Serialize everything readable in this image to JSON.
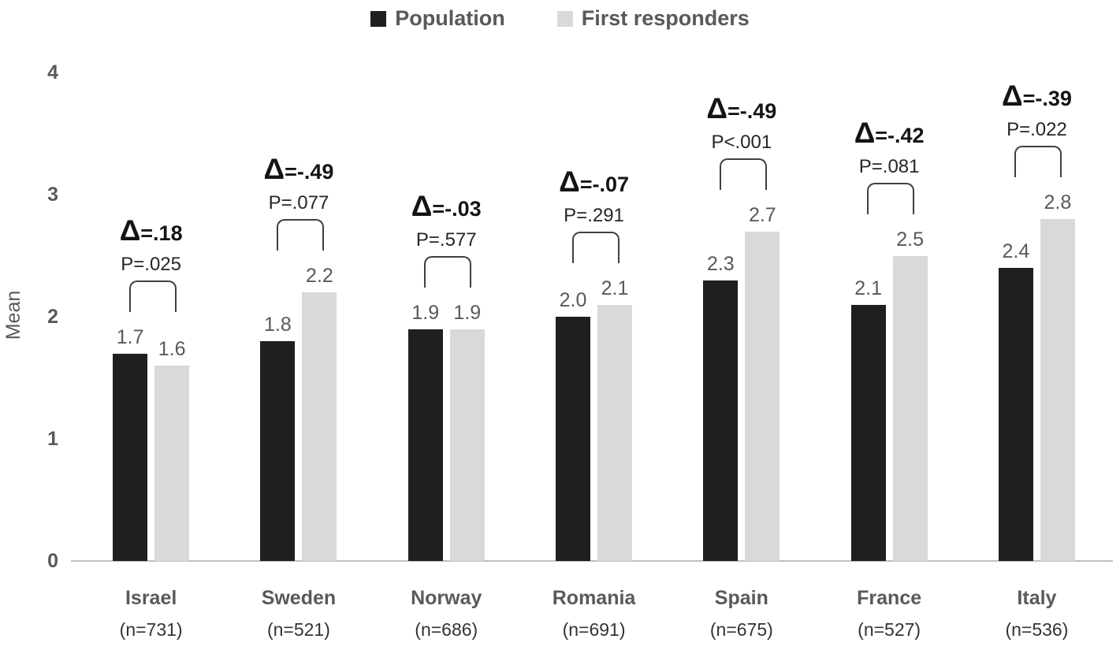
{
  "chart_data": {
    "type": "bar",
    "title": "",
    "xlabel": "",
    "ylabel": "Mean",
    "ylim": [
      0,
      4
    ],
    "yticks": [
      0,
      1,
      2,
      3,
      4
    ],
    "grid": false,
    "legend_position": "top-center",
    "legend": [
      "Population",
      "First responders"
    ],
    "categories": [
      "Israel",
      "Sweden",
      "Norway",
      "Romania",
      "Spain",
      "France",
      "Italy"
    ],
    "sample_labels": [
      "(n=731)",
      "(n=521)",
      "(n=686)",
      "(n=691)",
      "(n=675)",
      "(n=527)",
      "(n=536)"
    ],
    "series": [
      {
        "name": "Population",
        "color": "#1f1f1f",
        "values": [
          1.7,
          1.8,
          1.9,
          2.0,
          2.3,
          2.1,
          2.4
        ],
        "labels": [
          "1.7",
          "1.8",
          "1.9",
          "2.0",
          "2.3",
          "2.1",
          "2.4"
        ]
      },
      {
        "name": "First responders",
        "color": "#d9d9d9",
        "values": [
          1.6,
          2.2,
          1.9,
          2.1,
          2.7,
          2.5,
          2.8
        ],
        "labels": [
          "1.6",
          "2.2",
          "1.9",
          "2.1",
          "2.7",
          "2.5",
          "2.8"
        ]
      }
    ],
    "annotations": [
      {
        "delta": "Δ=.18",
        "p": "P=.025"
      },
      {
        "delta": "Δ=-.49",
        "p": "P=.077"
      },
      {
        "delta": "Δ=-.03",
        "p": "P=.577"
      },
      {
        "delta": "Δ=-.07",
        "p": "P=.291"
      },
      {
        "delta": "Δ=-.49",
        "p": "P<.001"
      },
      {
        "delta": "Δ=-.42",
        "p": "P=.081"
      },
      {
        "delta": "Δ=-.39",
        "p": "P=.022"
      }
    ],
    "colors": {
      "population_bar": "#1f1f1f",
      "first_responders_bar": "#d9d9d9",
      "axis_text": "#595959",
      "annotation_text": "#262626",
      "delta_text": "#141414",
      "axis_line": "#bfbfbf",
      "bracket": "#404040",
      "background": "#ffffff"
    }
  }
}
